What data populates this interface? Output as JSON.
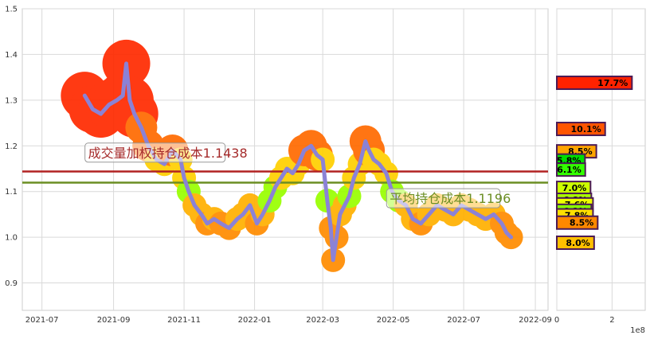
{
  "chart_data": [
    {
      "type": "line",
      "title": "",
      "xlabel": "",
      "ylabel": "",
      "ylim": [
        0.84,
        1.5
      ],
      "grid": true,
      "x_ticks": [
        "2021-07",
        "2021-09",
        "2021-11",
        "2022-01",
        "2022-03",
        "2022-05",
        "2022-07",
        "2022-09"
      ],
      "y_ticks": [
        "0.9",
        "1.0",
        "1.1",
        "1.2",
        "1.3",
        "1.4",
        "1.5"
      ],
      "series": [
        {
          "color": "#8b82d6",
          "points": [
            [
              "2021-08-07",
              1.31
            ],
            [
              "2021-08-14",
              1.28
            ],
            [
              "2021-08-21",
              1.27
            ],
            [
              "2021-08-28",
              1.29
            ],
            [
              "2021-09-04",
              1.3
            ],
            [
              "2021-09-09",
              1.31
            ],
            [
              "2021-09-12",
              1.38
            ],
            [
              "2021-09-15",
              1.3
            ],
            [
              "2021-09-19",
              1.27
            ],
            [
              "2021-09-25",
              1.24
            ],
            [
              "2021-10-01",
              1.2
            ],
            [
              "2021-10-08",
              1.17
            ],
            [
              "2021-10-15",
              1.16
            ],
            [
              "2021-10-22",
              1.19
            ],
            [
              "2021-10-29",
              1.17
            ],
            [
              "2021-11-01",
              1.13
            ],
            [
              "2021-11-05",
              1.1
            ],
            [
              "2021-11-10",
              1.07
            ],
            [
              "2021-11-16",
              1.05
            ],
            [
              "2021-11-21",
              1.03
            ],
            [
              "2021-11-27",
              1.04
            ],
            [
              "2021-12-03",
              1.03
            ],
            [
              "2021-12-10",
              1.02
            ],
            [
              "2021-12-17",
              1.04
            ],
            [
              "2021-12-22",
              1.05
            ],
            [
              "2021-12-28",
              1.07
            ],
            [
              "2022-01-03",
              1.03
            ],
            [
              "2022-01-08",
              1.05
            ],
            [
              "2022-01-14",
              1.08
            ],
            [
              "2022-01-19",
              1.11
            ],
            [
              "2022-01-24",
              1.13
            ],
            [
              "2022-01-29",
              1.15
            ],
            [
              "2022-02-03",
              1.14
            ],
            [
              "2022-02-08",
              1.16
            ],
            [
              "2022-02-13",
              1.19
            ],
            [
              "2022-02-19",
              1.2
            ],
            [
              "2022-02-24",
              1.18
            ],
            [
              "2022-03-01",
              1.17
            ],
            [
              "2022-03-05",
              1.08
            ],
            [
              "2022-03-08",
              1.02
            ],
            [
              "2022-03-10",
              0.95
            ],
            [
              "2022-03-13",
              1.0
            ],
            [
              "2022-03-16",
              1.05
            ],
            [
              "2022-03-20",
              1.07
            ],
            [
              "2022-03-24",
              1.09
            ],
            [
              "2022-03-28",
              1.13
            ],
            [
              "2022-04-02",
              1.16
            ],
            [
              "2022-04-07",
              1.21
            ],
            [
              "2022-04-10",
              1.19
            ],
            [
              "2022-04-14",
              1.17
            ],
            [
              "2022-04-19",
              1.16
            ],
            [
              "2022-04-25",
              1.14
            ],
            [
              "2022-04-30",
              1.1
            ],
            [
              "2022-05-06",
              1.08
            ],
            [
              "2022-05-12",
              1.07
            ],
            [
              "2022-05-18",
              1.04
            ],
            [
              "2022-05-25",
              1.03
            ],
            [
              "2022-06-01",
              1.05
            ],
            [
              "2022-06-08",
              1.07
            ],
            [
              "2022-06-15",
              1.06
            ],
            [
              "2022-06-22",
              1.05
            ],
            [
              "2022-06-29",
              1.07
            ],
            [
              "2022-07-06",
              1.06
            ],
            [
              "2022-07-13",
              1.05
            ],
            [
              "2022-07-20",
              1.04
            ],
            [
              "2022-07-27",
              1.05
            ],
            [
              "2022-08-03",
              1.03
            ],
            [
              "2022-08-07",
              1.01
            ],
            [
              "2022-08-11",
              1.0
            ]
          ]
        }
      ],
      "hlines": [
        {
          "y": 1.1438,
          "color": "#b22222",
          "label": "成交量加权持仓成本1.1438",
          "label_color": "#a52a2a",
          "label_at": "2021-08-10",
          "label_y": 1.18
        },
        {
          "y": 1.1196,
          "color": "#6b8e23",
          "label": "平均持仓成本1.1196",
          "label_color": "#6b8e23",
          "label_at": "2022-04-28",
          "label_y": 1.08
        }
      ]
    },
    {
      "type": "bar",
      "orientation": "horizontal",
      "xlim": [
        0,
        3.2
      ],
      "x_ticks": [
        "0",
        "2"
      ],
      "x_scale_label": "1e8",
      "bars": [
        {
          "price": 1.338,
          "value": 2.72,
          "label": "17.7%",
          "color": "#ff2200"
        },
        {
          "price": 1.237,
          "value": 1.75,
          "label": "10.1%",
          "color": "#ff5500"
        },
        {
          "price": 1.188,
          "value": 1.43,
          "label": "8.5%",
          "color": "#ffa500"
        },
        {
          "price": 1.168,
          "value": 1.02,
          "label": "5.8%",
          "color": "#00dd00"
        },
        {
          "price": 1.148,
          "value": 1.03,
          "label": "6.1%",
          "color": "#33ff00"
        },
        {
          "price": 1.108,
          "value": 1.22,
          "label": "7.0%",
          "color": "#ccff00"
        },
        {
          "price": 1.082,
          "value": 1.25,
          "label": "6.8%",
          "color": "#aaff00"
        },
        {
          "price": 1.072,
          "value": 1.31,
          "label": "7.6%",
          "color": "#eeff00"
        },
        {
          "price": 1.058,
          "value": 1.25,
          "label": "6.1%",
          "color": "#88ff00"
        },
        {
          "price": 1.048,
          "value": 1.31,
          "label": "7.8%",
          "color": "#ffe000"
        },
        {
          "price": 1.032,
          "value": 1.48,
          "label": "8.5%",
          "color": "#ff8800"
        },
        {
          "price": 0.988,
          "value": 1.35,
          "label": "8.0%",
          "color": "#ffc000"
        }
      ]
    }
  ]
}
